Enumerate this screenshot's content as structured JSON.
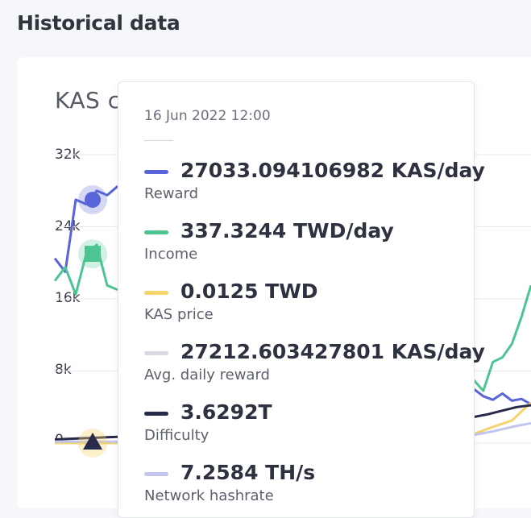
{
  "page": {
    "title": "Historical data"
  },
  "chart_data": {
    "type": "line",
    "title": "KAS c",
    "y_ticks": [
      "32k",
      "24k",
      "16k",
      "8k",
      "0"
    ],
    "ylim": [
      0,
      32000
    ],
    "grid": true,
    "series": [
      {
        "name": "Reward",
        "color": "#5865d8",
        "visible_values_left": [
          20500,
          19000,
          27000,
          26500,
          28000,
          27500,
          28500
        ],
        "visible_values_right": [
          6000,
          5200,
          4800,
          5500,
          4700,
          4900,
          4300
        ]
      },
      {
        "name": "Income",
        "color": "#4cc593",
        "visible_values_left": [
          18000,
          19500,
          16500,
          21000,
          22000,
          17500,
          17000
        ],
        "visible_values_right": [
          7000,
          5800,
          9000,
          9500,
          11000,
          14000,
          17500
        ]
      },
      {
        "name": "KAS price",
        "color": "#f5d46b",
        "visible_values_left": [
          0,
          0,
          0
        ],
        "visible_values_right": [
          1000,
          1800,
          2500,
          4500
        ]
      },
      {
        "name": "Avg. daily reward",
        "color": "#d8d9e0",
        "visible_values_left": [],
        "visible_values_right": []
      },
      {
        "name": "Difficulty",
        "color": "#272a4a",
        "visible_values_left": [
          400,
          500,
          600,
          700
        ],
        "visible_values_right": [
          2900,
          3200,
          3600,
          4000,
          4200
        ]
      },
      {
        "name": "Network hashrate",
        "color": "#c3c6ee",
        "visible_values_left": [
          150,
          150,
          150
        ],
        "visible_values_right": [
          900,
          1300,
          1800,
          2200
        ]
      }
    ]
  },
  "tooltip": {
    "date": "16 Jun 2022 12:00",
    "rows": [
      {
        "value": "27033.094106982 KAS/day",
        "label": "Reward",
        "color": "#5865d8"
      },
      {
        "value": "337.3244 TWD/day",
        "label": "Income",
        "color": "#4cc593"
      },
      {
        "value": "0.0125 TWD",
        "label": "KAS price",
        "color": "#f5d46b"
      },
      {
        "value": "27212.603427801 KAS/day",
        "label": "Avg. daily reward",
        "color": "#d8d9e0"
      },
      {
        "value": "3.6292T",
        "label": "Difficulty",
        "color": "#272a4a"
      },
      {
        "value": "7.2584 TH/s",
        "label": "Network hashrate",
        "color": "#c3c6ee"
      }
    ]
  }
}
